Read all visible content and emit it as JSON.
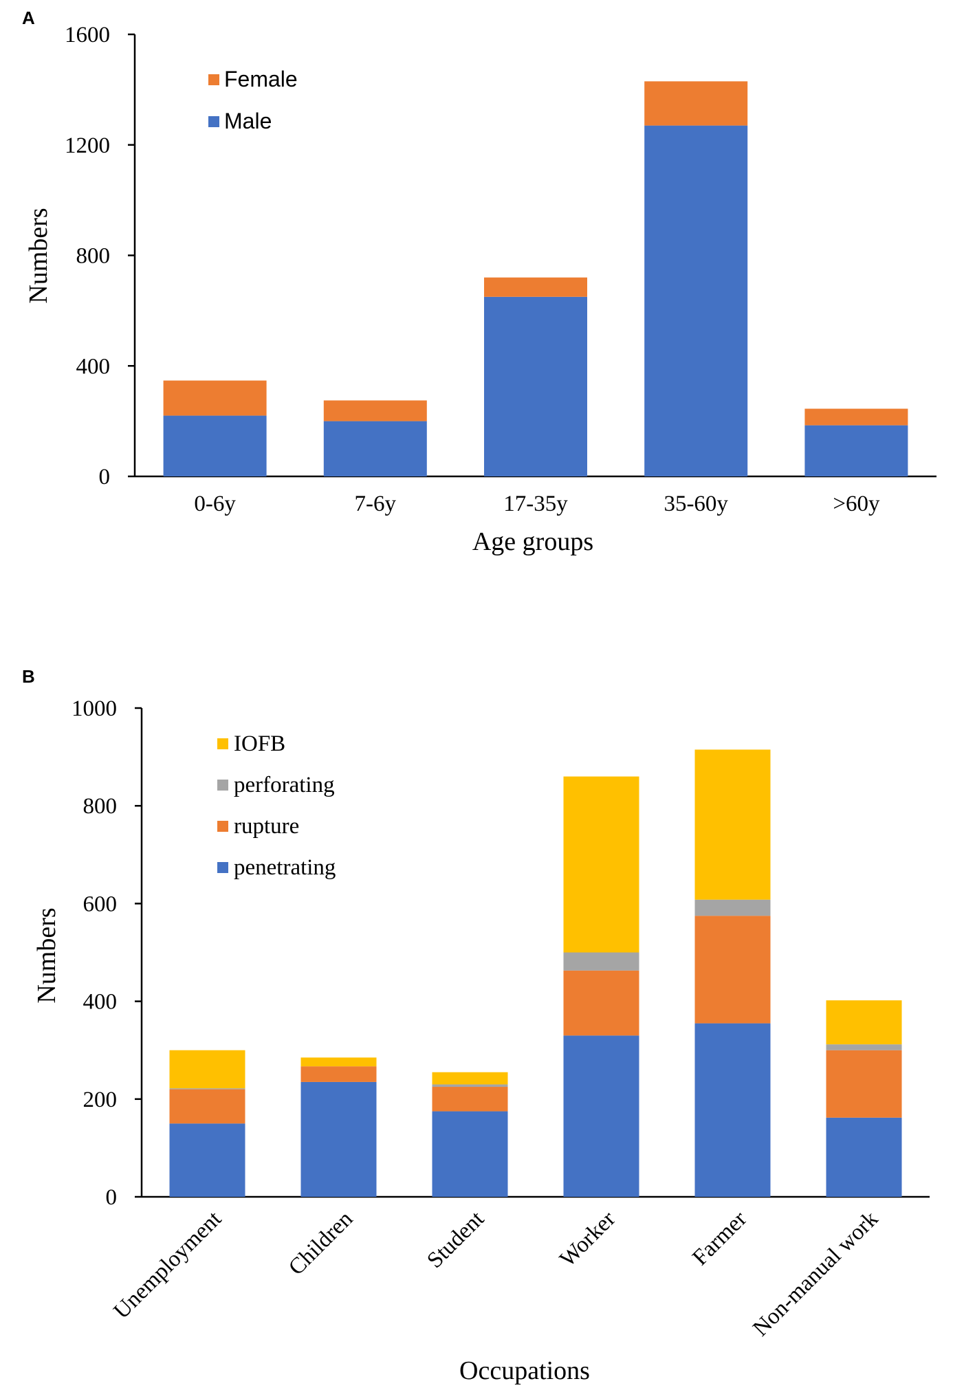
{
  "chart_data": [
    {
      "panel": "A",
      "type": "bar",
      "stacked": true,
      "categories": [
        "0-6y",
        "7-6y",
        "17-35y",
        "35-60y",
        ">60y"
      ],
      "series": [
        {
          "name": "Male",
          "color": "#4472C4",
          "values": [
            220,
            200,
            650,
            1270,
            185
          ]
        },
        {
          "name": "Female",
          "color": "#ED7D31",
          "values": [
            127,
            75,
            70,
            160,
            60
          ]
        }
      ],
      "legend": [
        "Female",
        "Male"
      ],
      "xlabel": "Age groups",
      "ylabel": "Numbers",
      "ylim": [
        0,
        1600
      ],
      "yticks": [
        "0",
        "400",
        "800",
        "1200",
        "1600"
      ],
      "legend_position": "top-left",
      "grid": false
    },
    {
      "panel": "B",
      "type": "bar",
      "stacked": true,
      "categories": [
        "Unemployment",
        "Children",
        "Student",
        "Worker",
        "Farmer",
        "Non-manual work"
      ],
      "series": [
        {
          "name": "penetrating",
          "color": "#4472C4",
          "values": [
            150,
            235,
            175,
            330,
            355,
            162
          ]
        },
        {
          "name": "rupture",
          "color": "#ED7D31",
          "values": [
            70,
            32,
            50,
            133,
            220,
            138
          ]
        },
        {
          "name": "perforating",
          "color": "#A5A5A5",
          "values": [
            2,
            0,
            5,
            37,
            33,
            12
          ]
        },
        {
          "name": "IOFB",
          "color": "#FFC000",
          "values": [
            78,
            18,
            25,
            360,
            307,
            90
          ]
        }
      ],
      "legend": [
        "IOFB",
        "perforating",
        "rupture",
        "penetrating"
      ],
      "xlabel": "Occupations",
      "ylabel": "Numbers",
      "ylim": [
        0,
        1000
      ],
      "yticks": [
        "0",
        "200",
        "400",
        "600",
        "800",
        "1000"
      ],
      "legend_position": "top-left",
      "grid": false
    }
  ]
}
